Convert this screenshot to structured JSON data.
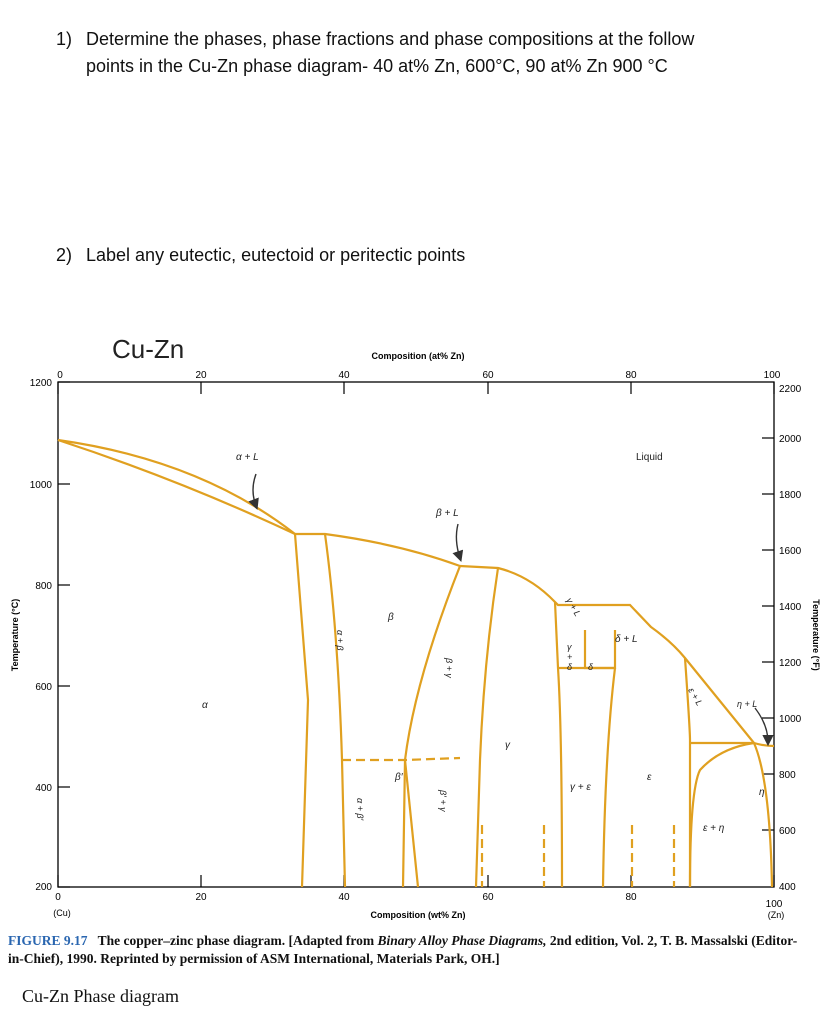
{
  "questions": [
    {
      "number": "1)",
      "line1": "Determine the phases, phase fractions and phase compositions at the follow",
      "line2": "points in the Cu-Zn phase diagram- 40 at% Zn, 600°C, 90 at% Zn 900 °C"
    },
    {
      "number": "2)",
      "line1": "Label any eutectic, eutectoid or peritectic points"
    }
  ],
  "diagram": {
    "title": "Cu-Zn",
    "top_axis_title": "Composition (at% Zn)",
    "top_ticks": [
      "0",
      "20",
      "40",
      "60",
      "80",
      "100"
    ],
    "bottom_axis_title": "Composition (wt% Zn)",
    "bottom_ticks": [
      "0",
      "20",
      "40",
      "60",
      "80",
      "100"
    ],
    "bottom_end_left": "(Cu)",
    "bottom_end_right": "(Zn)",
    "left_axis_title": "Temperature (°C)",
    "left_ticks": [
      "1200",
      "1000",
      "800",
      "600",
      "400",
      "200"
    ],
    "right_axis_title": "Temperature (°F)",
    "right_ticks": [
      "2200",
      "2000",
      "1800",
      "1600",
      "1400",
      "1200",
      "1000",
      "800",
      "600",
      "400"
    ],
    "line_color": "#e0a020",
    "arrow_color": "#333333",
    "regions": {
      "liquid": "Liquid",
      "alpha_L": "α + L",
      "beta_L": "β + L",
      "beta": "β",
      "alpha": "α",
      "alpha_beta": "α + β",
      "beta_gamma": "β + γ",
      "gamma": "γ",
      "gamma_L": "γ + L",
      "gamma_delta_top": "γ",
      "gamma_delta_mid": "+",
      "gamma_delta_bot": "δ",
      "delta": "δ",
      "delta_L": "δ + L",
      "epsilon_L": "ε + L",
      "eta_L": "η + L",
      "beta_prime": "β′",
      "alpha_beta_prime": "α + β′",
      "beta_prime_gamma": "β′ + γ",
      "gamma_epsilon": "γ + ε",
      "epsilon": "ε",
      "epsilon_eta": "ε + η",
      "eta": "η"
    }
  },
  "caption": {
    "label": "FIGURE 9.17",
    "part1": "The copper–zinc phase diagram. [Adapted from ",
    "italic": "Binary Alloy Phase Diagrams,",
    "part2": " 2nd edition, Vol. 2, T. B. Massalski (Editor-in-Chief), 1990. Reprinted by permission of ASM International, Materials Park, OH.]"
  },
  "footer": "Cu-Zn Phase diagram"
}
